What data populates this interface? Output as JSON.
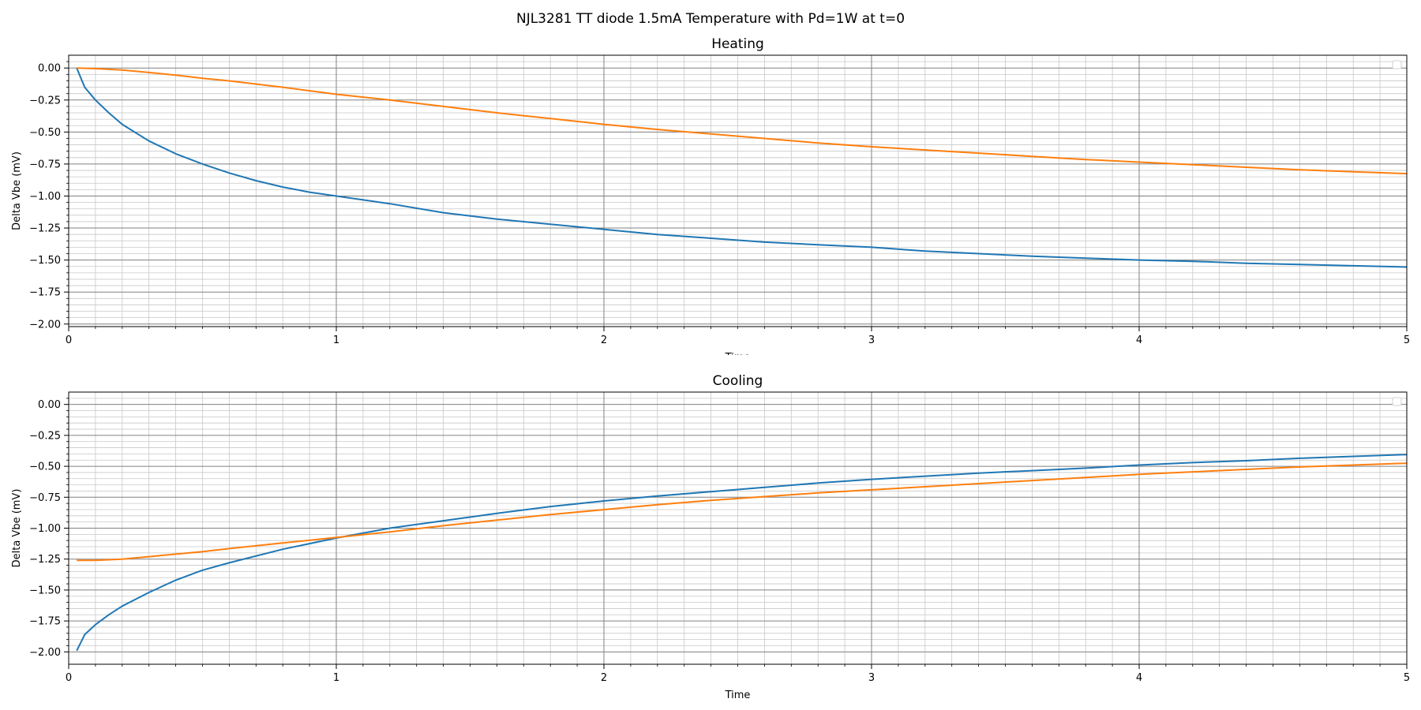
{
  "figure": {
    "suptitle": "NJL3281 TT diode 1.5mA Temperature with Pd=1W at t=0"
  },
  "colors": {
    "series1": "#1f77b4",
    "series2": "#ff7f0e",
    "grid_major": "#808080",
    "grid_minor": "#c8c8c8"
  },
  "chart_data": [
    {
      "type": "line",
      "title": "Heating",
      "xlabel": "Time",
      "ylabel": "Delta Vbe (mV)",
      "xlim": [
        0,
        5
      ],
      "ylim": [
        -2.02,
        0.1
      ],
      "xticks": [
        0,
        1,
        2,
        3,
        4,
        5
      ],
      "yticks": [
        0.0,
        -0.25,
        -0.5,
        -0.75,
        -1.0,
        -1.25,
        -1.5,
        -1.75,
        -2.0
      ],
      "grid": "major and minor",
      "legend": "top-right (empty)",
      "series": [
        {
          "color": "#1f77b4",
          "x": [
            0.03,
            0.06,
            0.1,
            0.15,
            0.2,
            0.3,
            0.4,
            0.5,
            0.6,
            0.7,
            0.8,
            0.9,
            1.0,
            1.2,
            1.4,
            1.6,
            1.8,
            2.0,
            2.2,
            2.4,
            2.6,
            2.8,
            3.0,
            3.2,
            3.4,
            3.6,
            3.8,
            4.0,
            4.2,
            4.4,
            4.6,
            4.8,
            5.0
          ],
          "y": [
            0.0,
            -0.15,
            -0.25,
            -0.35,
            -0.44,
            -0.57,
            -0.67,
            -0.75,
            -0.82,
            -0.88,
            -0.93,
            -0.97,
            -1.0,
            -1.06,
            -1.13,
            -1.18,
            -1.22,
            -1.26,
            -1.3,
            -1.33,
            -1.36,
            -1.38,
            -1.4,
            -1.43,
            -1.45,
            -1.47,
            -1.485,
            -1.5,
            -1.51,
            -1.525,
            -1.535,
            -1.545,
            -1.555
          ]
        },
        {
          "color": "#ff7f0e",
          "x": [
            0.03,
            0.1,
            0.2,
            0.3,
            0.4,
            0.5,
            0.6,
            0.8,
            1.0,
            1.2,
            1.4,
            1.6,
            1.8,
            2.0,
            2.2,
            2.4,
            2.6,
            2.8,
            3.0,
            3.2,
            3.4,
            3.6,
            3.8,
            4.0,
            4.2,
            4.4,
            4.6,
            4.8,
            5.0
          ],
          "y": [
            0.0,
            -0.005,
            -0.015,
            -0.035,
            -0.055,
            -0.08,
            -0.1,
            -0.15,
            -0.205,
            -0.25,
            -0.3,
            -0.35,
            -0.395,
            -0.44,
            -0.48,
            -0.515,
            -0.55,
            -0.585,
            -0.615,
            -0.64,
            -0.665,
            -0.69,
            -0.715,
            -0.735,
            -0.755,
            -0.775,
            -0.795,
            -0.81,
            -0.825
          ]
        }
      ]
    },
    {
      "type": "line",
      "title": "Cooling",
      "xlabel": "Time",
      "ylabel": "Delta Vbe (mV)",
      "xlim": [
        0,
        5
      ],
      "ylim": [
        -2.1,
        0.1
      ],
      "xticks": [
        0,
        1,
        2,
        3,
        4,
        5
      ],
      "yticks": [
        0.0,
        -0.25,
        -0.5,
        -0.75,
        -1.0,
        -1.25,
        -1.5,
        -1.75,
        -2.0
      ],
      "grid": "major and minor",
      "legend": "top-right (empty)",
      "series": [
        {
          "color": "#1f77b4",
          "x": [
            0.03,
            0.06,
            0.1,
            0.15,
            0.2,
            0.3,
            0.4,
            0.5,
            0.6,
            0.8,
            1.0,
            1.2,
            1.4,
            1.6,
            1.8,
            2.0,
            2.2,
            2.4,
            2.6,
            2.8,
            3.0,
            3.2,
            3.4,
            3.6,
            3.8,
            4.0,
            4.2,
            4.4,
            4.6,
            4.8,
            5.0
          ],
          "y": [
            -1.99,
            -1.86,
            -1.78,
            -1.7,
            -1.63,
            -1.52,
            -1.42,
            -1.34,
            -1.28,
            -1.17,
            -1.08,
            -1.0,
            -0.94,
            -0.88,
            -0.825,
            -0.78,
            -0.74,
            -0.705,
            -0.67,
            -0.635,
            -0.605,
            -0.58,
            -0.555,
            -0.535,
            -0.515,
            -0.49,
            -0.47,
            -0.455,
            -0.435,
            -0.42,
            -0.405
          ]
        },
        {
          "color": "#ff7f0e",
          "x": [
            0.03,
            0.1,
            0.2,
            0.3,
            0.4,
            0.5,
            0.6,
            0.8,
            1.0,
            1.2,
            1.4,
            1.6,
            1.8,
            2.0,
            2.2,
            2.4,
            2.6,
            2.8,
            3.0,
            3.2,
            3.4,
            3.6,
            3.8,
            4.0,
            4.2,
            4.4,
            4.6,
            4.8,
            5.0
          ],
          "y": [
            -1.26,
            -1.26,
            -1.25,
            -1.23,
            -1.21,
            -1.19,
            -1.165,
            -1.12,
            -1.075,
            -1.03,
            -0.98,
            -0.935,
            -0.89,
            -0.85,
            -0.81,
            -0.775,
            -0.745,
            -0.715,
            -0.69,
            -0.665,
            -0.64,
            -0.615,
            -0.59,
            -0.565,
            -0.545,
            -0.525,
            -0.505,
            -0.49,
            -0.475
          ]
        }
      ]
    }
  ]
}
